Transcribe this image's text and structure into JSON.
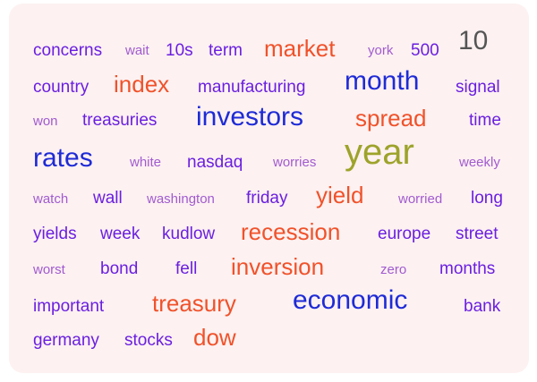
{
  "colors": {
    "panel_background": "#fdf1f1",
    "purple_light": "#a15bd0",
    "purple": "#7b2ee6",
    "violet": "#6a1fe0",
    "blue": "#3c1bd9",
    "navy_blue": "#1e2bd6",
    "orange_red": "#f0522a",
    "olive": "#9da32a",
    "gray": "#555555"
  },
  "words": [
    {
      "id": "concerns",
      "text": "concerns",
      "color": "#6a1fe0"
    },
    {
      "id": "wait",
      "text": "wait",
      "color": "#a15bd0"
    },
    {
      "id": "10s",
      "text": "10s",
      "color": "#6a1fe0"
    },
    {
      "id": "term",
      "text": "term",
      "color": "#6a1fe0"
    },
    {
      "id": "market",
      "text": "market",
      "color": "#f0522a"
    },
    {
      "id": "york",
      "text": "york",
      "color": "#a15bd0"
    },
    {
      "id": "500",
      "text": "500",
      "color": "#6a1fe0"
    },
    {
      "id": "10",
      "text": "10",
      "color": "#555555"
    },
    {
      "id": "country",
      "text": "country",
      "color": "#6a1fe0"
    },
    {
      "id": "index",
      "text": "index",
      "color": "#f0522a"
    },
    {
      "id": "manufacturing",
      "text": "manufacturing",
      "color": "#6a1fe0"
    },
    {
      "id": "month",
      "text": "month",
      "color": "#1e2bd6"
    },
    {
      "id": "signal",
      "text": "signal",
      "color": "#6a1fe0"
    },
    {
      "id": "won",
      "text": "won",
      "color": "#a15bd0"
    },
    {
      "id": "treasuries",
      "text": "treasuries",
      "color": "#6a1fe0"
    },
    {
      "id": "investors",
      "text": "investors",
      "color": "#1e2bd6"
    },
    {
      "id": "spread",
      "text": "spread",
      "color": "#f0522a"
    },
    {
      "id": "time",
      "text": "time",
      "color": "#6a1fe0"
    },
    {
      "id": "rates",
      "text": "rates",
      "color": "#1e2bd6"
    },
    {
      "id": "white",
      "text": "white",
      "color": "#a15bd0"
    },
    {
      "id": "nasdaq",
      "text": "nasdaq",
      "color": "#6a1fe0"
    },
    {
      "id": "worries",
      "text": "worries",
      "color": "#a15bd0"
    },
    {
      "id": "year",
      "text": "year",
      "color": "#9da32a"
    },
    {
      "id": "weekly",
      "text": "weekly",
      "color": "#a15bd0"
    },
    {
      "id": "watch",
      "text": "watch",
      "color": "#a15bd0"
    },
    {
      "id": "wall",
      "text": "wall",
      "color": "#6a1fe0"
    },
    {
      "id": "washington",
      "text": "washington",
      "color": "#a15bd0"
    },
    {
      "id": "friday",
      "text": "friday",
      "color": "#6a1fe0"
    },
    {
      "id": "yield",
      "text": "yield",
      "color": "#f0522a"
    },
    {
      "id": "worried",
      "text": "worried",
      "color": "#a15bd0"
    },
    {
      "id": "long",
      "text": "long",
      "color": "#6a1fe0"
    },
    {
      "id": "yields",
      "text": "yields",
      "color": "#6a1fe0"
    },
    {
      "id": "week",
      "text": "week",
      "color": "#6a1fe0"
    },
    {
      "id": "kudlow",
      "text": "kudlow",
      "color": "#6a1fe0"
    },
    {
      "id": "recession",
      "text": "recession",
      "color": "#f0522a"
    },
    {
      "id": "europe",
      "text": "europe",
      "color": "#6a1fe0"
    },
    {
      "id": "street",
      "text": "street",
      "color": "#6a1fe0"
    },
    {
      "id": "worst",
      "text": "worst",
      "color": "#a15bd0"
    },
    {
      "id": "bond",
      "text": "bond",
      "color": "#6a1fe0"
    },
    {
      "id": "fell",
      "text": "fell",
      "color": "#6a1fe0"
    },
    {
      "id": "inversion",
      "text": "inversion",
      "color": "#f0522a"
    },
    {
      "id": "zero",
      "text": "zero",
      "color": "#a15bd0"
    },
    {
      "id": "months",
      "text": "months",
      "color": "#6a1fe0"
    },
    {
      "id": "important",
      "text": "important",
      "color": "#6a1fe0"
    },
    {
      "id": "treasury",
      "text": "treasury",
      "color": "#f0522a"
    },
    {
      "id": "economic",
      "text": "economic",
      "color": "#1e2bd6"
    },
    {
      "id": "bank",
      "text": "bank",
      "color": "#6a1fe0"
    },
    {
      "id": "germany",
      "text": "germany",
      "color": "#6a1fe0"
    },
    {
      "id": "stocks",
      "text": "stocks",
      "color": "#6a1fe0"
    },
    {
      "id": "dow",
      "text": "dow",
      "color": "#f0522a"
    }
  ]
}
